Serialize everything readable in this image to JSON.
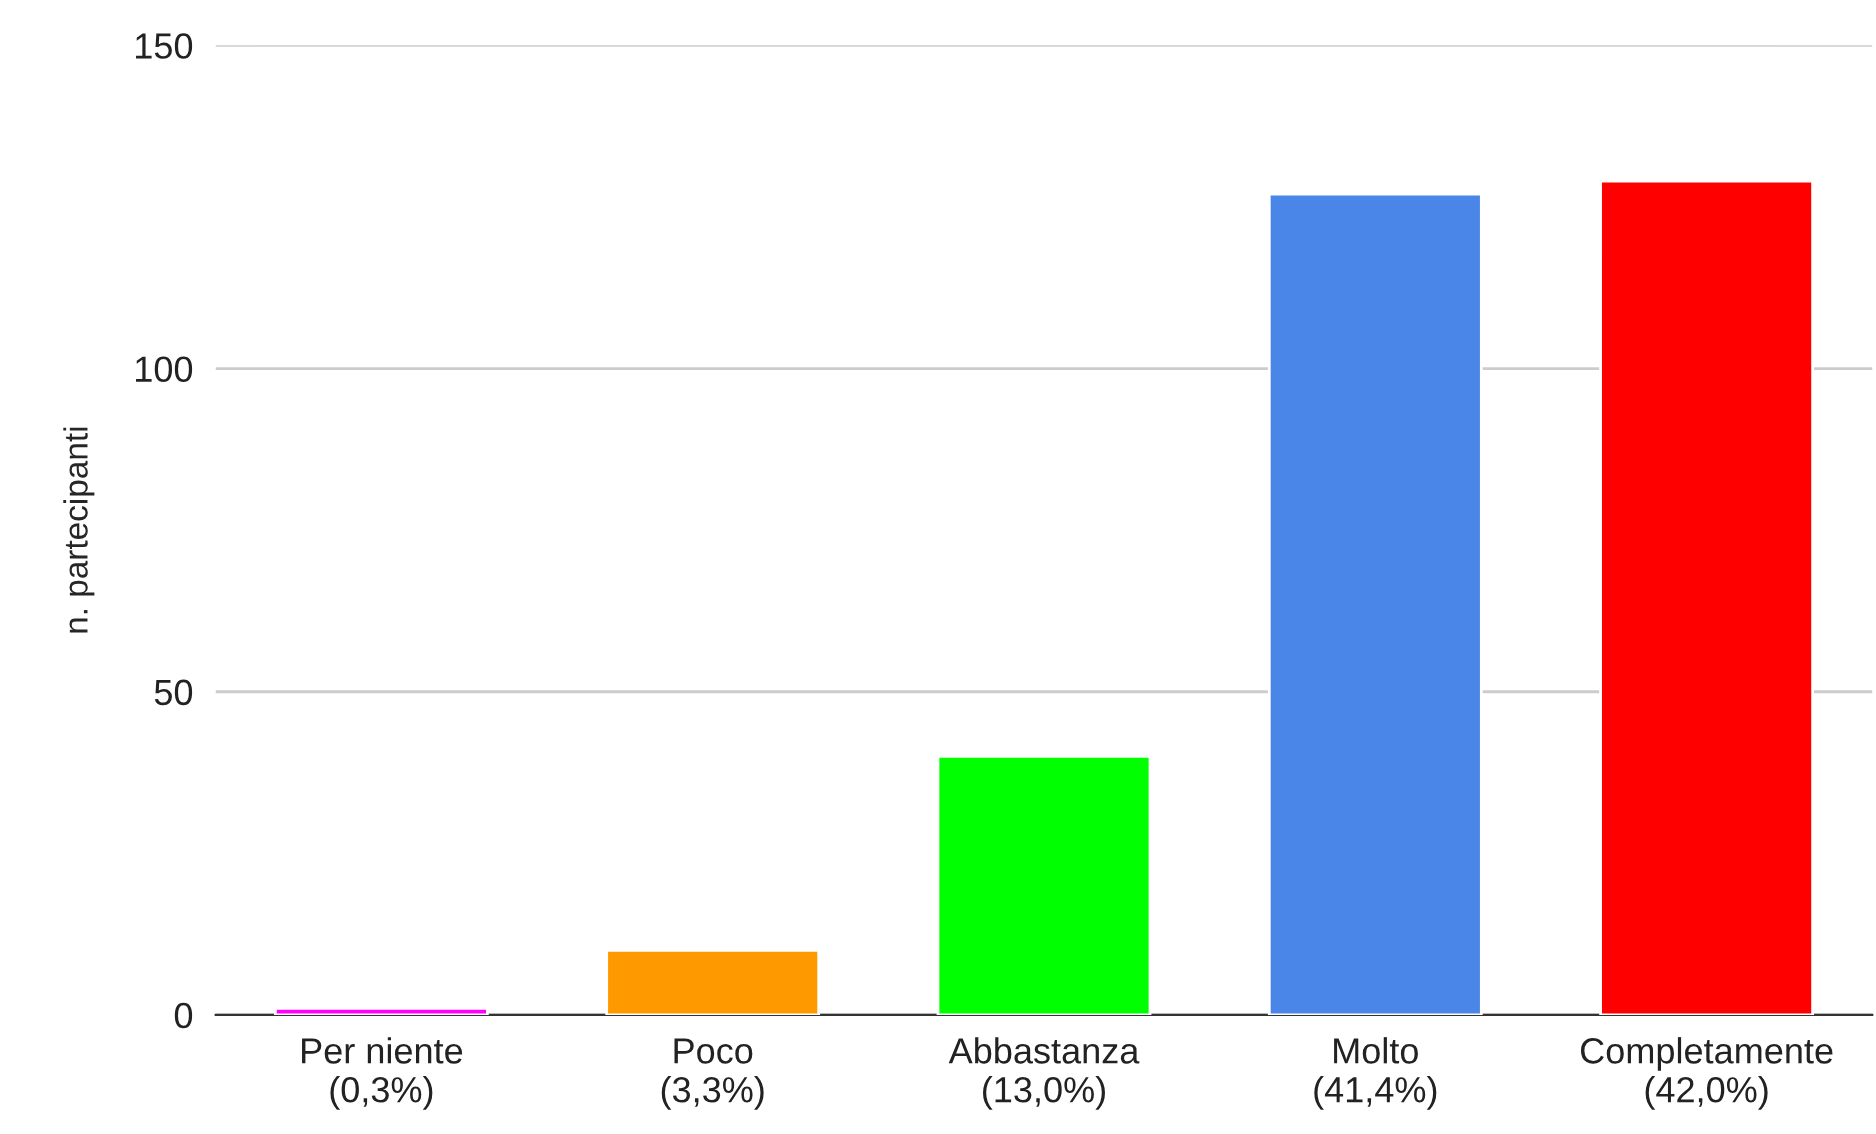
{
  "chart_data": {
    "type": "bar",
    "ylabel": "n. partecipanti",
    "categories": [
      "Per niente\n(0,3%)",
      "Poco\n(3,3%)",
      "Abbastanza\n(13,0%)",
      "Molto\n(41,4%)",
      "Completamente\n(42,0%)"
    ],
    "values": [
      1,
      10,
      40,
      127,
      129
    ],
    "colors": [
      "#ff00ff",
      "#ff9900",
      "#00ff00",
      "#4a86e8",
      "#ff0000"
    ],
    "ylim": [
      0,
      150
    ],
    "yticks": [
      0,
      50,
      100,
      150
    ],
    "grid": "y"
  }
}
